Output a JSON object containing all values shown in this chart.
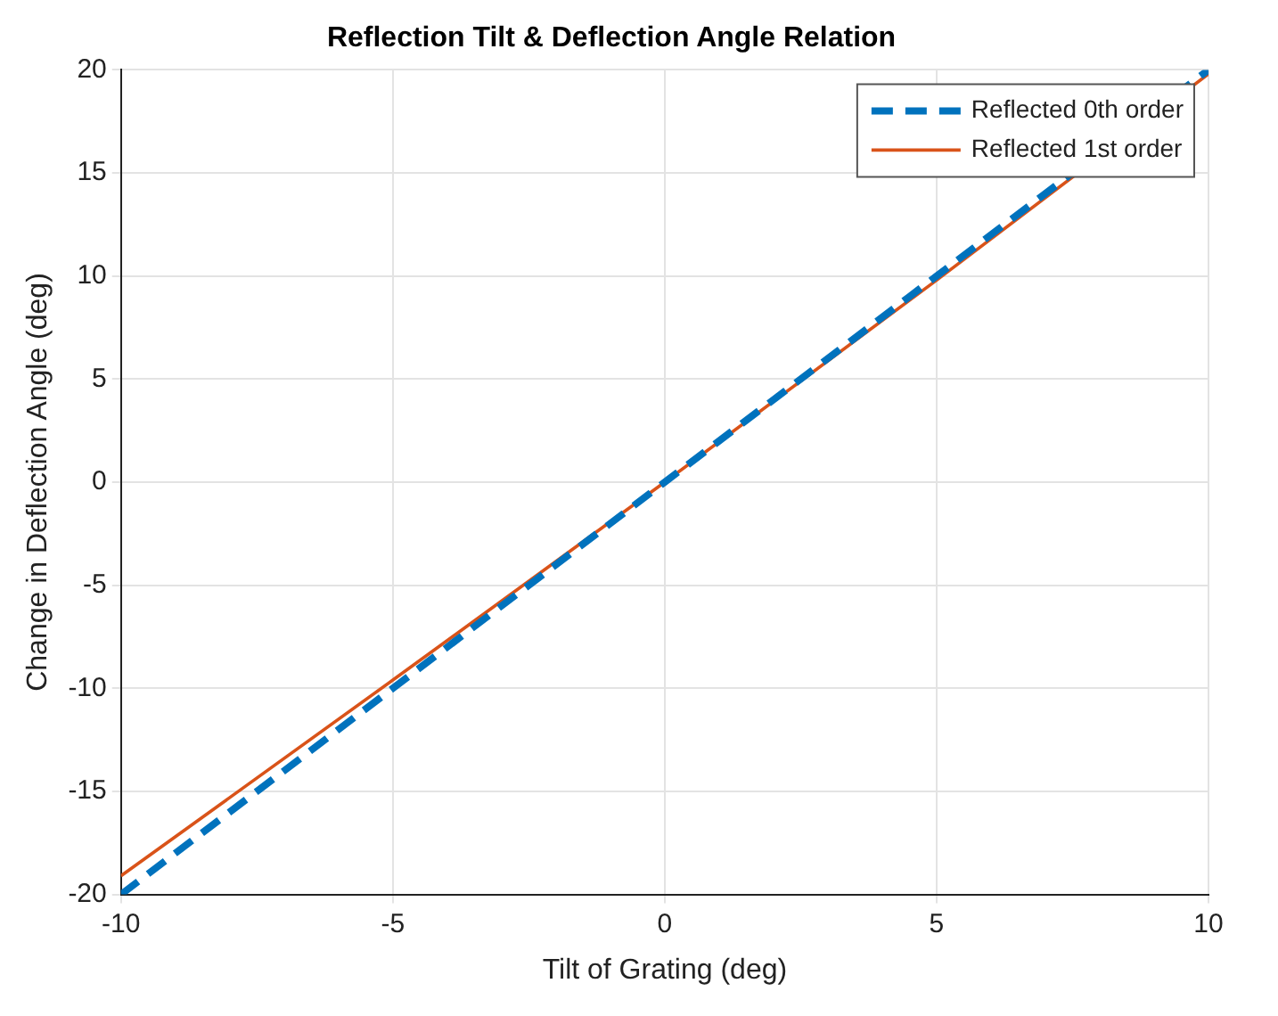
{
  "chart_data": {
    "type": "line",
    "title": "Reflection Tilt & Deflection Angle Relation",
    "xlabel": "Tilt of Grating (deg)",
    "ylabel": "Change in Deflection Angle (deg)",
    "xlim": [
      -10,
      10
    ],
    "ylim": [
      -20,
      20
    ],
    "xticks": [
      -10,
      -5,
      0,
      5,
      10
    ],
    "yticks": [
      -20,
      -15,
      -10,
      -5,
      0,
      5,
      10,
      15,
      20
    ],
    "grid": true,
    "legend": "top right",
    "marker": "none",
    "series": [
      {
        "name": "Reflected 0th order",
        "color": "#0072bd",
        "line_style": "dashed",
        "x": [
          -10,
          -5,
          0,
          5,
          10
        ],
        "values": [
          -20,
          -10,
          0,
          10,
          20
        ]
      },
      {
        "name": "Reflected 1st order",
        "color": "#d95319",
        "line_style": "solid",
        "x": [
          -10,
          -5,
          0,
          5,
          10
        ],
        "values": [
          -19.1,
          -9.6,
          0,
          9.8,
          19.8
        ]
      }
    ]
  }
}
